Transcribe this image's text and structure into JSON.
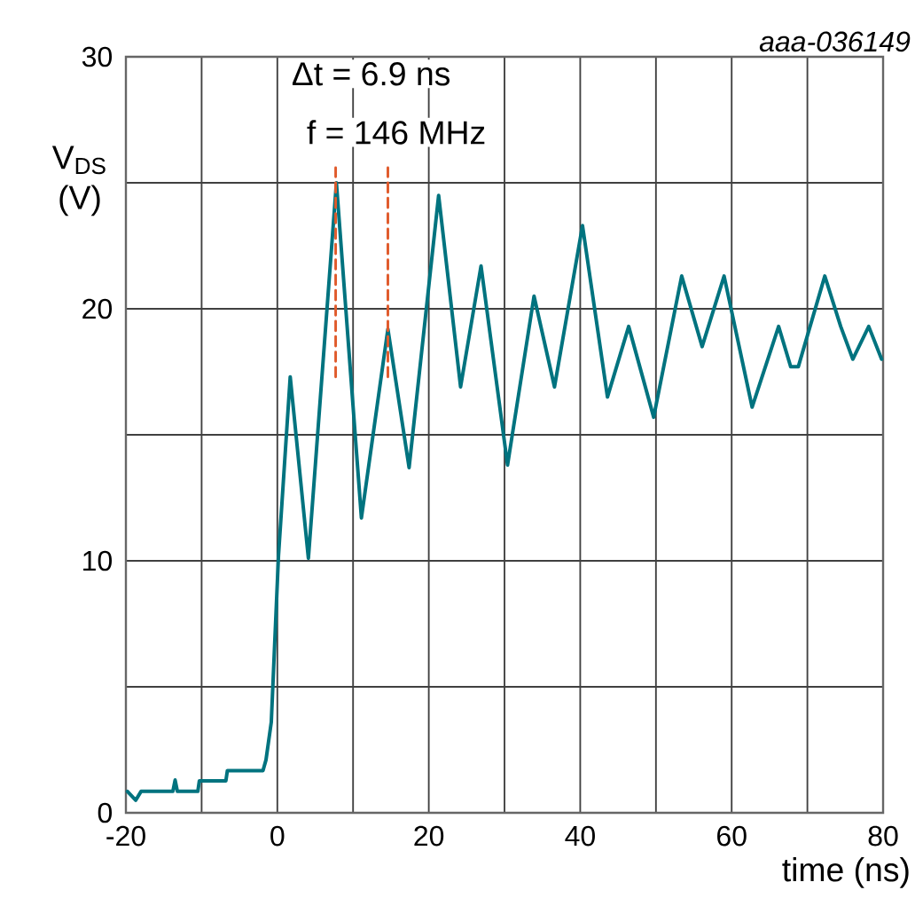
{
  "chart_data": {
    "type": "line",
    "xlabel": "time (ns)",
    "ylabel": "V$_{DS}$ (V)",
    "annotations": [
      "Δt = 6.9 ns",
      "f = 146 MHz",
      "aaa-036149"
    ],
    "xlim": [
      -20,
      80
    ],
    "xticks": [
      -20,
      {
        "value": -10,
        "label": null
      },
      0,
      {
        "value": 10,
        "label": null
      },
      20,
      {
        "value": 30,
        "label": null
      },
      40,
      {
        "value": 50,
        "label": null
      },
      60,
      {
        "value": 70,
        "label": null
      },
      80
    ],
    "ylim": [
      0,
      30
    ],
    "yticks": [
      0,
      {
        "value": 5,
        "label": null
      },
      10,
      {
        "value": 15,
        "label": null
      },
      20,
      {
        "value": 25,
        "label": null
      },
      30
    ],
    "grid": true,
    "marker": "none",
    "series": [
      {
        "color": "#00737f",
        "line_style": "solid",
        "x": [
          -19.8,
          -18.7,
          -18,
          -13.8,
          -13.5,
          -13.2,
          -10.5,
          -10.3,
          -6.8,
          -6.6,
          -1.9,
          -1.5,
          -0.8,
          0.15,
          1.7,
          4.1,
          7.8,
          11.1,
          14.6,
          17.4,
          21.3,
          24.2,
          26.9,
          30.4,
          33.9,
          36.6,
          40.3,
          43.6,
          46.4,
          49.7,
          53.4,
          56.1,
          59.0,
          62.7,
          66.2,
          67.8,
          68.8,
          72.3,
          74.4,
          76.0,
          78.1,
          79.8
        ],
        "values": [
          0.85,
          0.5,
          0.85,
          0.85,
          1.3,
          0.85,
          0.85,
          1.27,
          1.27,
          1.67,
          1.67,
          2.1,
          3.6,
          10.2,
          17.3,
          10.1,
          25.0,
          11.7,
          19.2,
          13.7,
          24.5,
          16.9,
          21.7,
          13.8,
          20.5,
          16.9,
          23.3,
          16.5,
          19.3,
          15.7,
          21.3,
          18.5,
          21.3,
          16.1,
          19.3,
          17.7,
          17.7,
          21.3,
          19.3,
          18.0,
          19.3,
          18.0
        ]
      },
      {
        "color": "#e05a2b",
        "line_style": "dashed",
        "x": [
          7.7,
          7.7
        ],
        "values": [
          17.3,
          25.6
        ]
      },
      {
        "color": "#e05a2b",
        "line_style": "dashed",
        "x": [
          14.6,
          14.6
        ],
        "values": [
          17.3,
          25.6
        ]
      }
    ]
  }
}
